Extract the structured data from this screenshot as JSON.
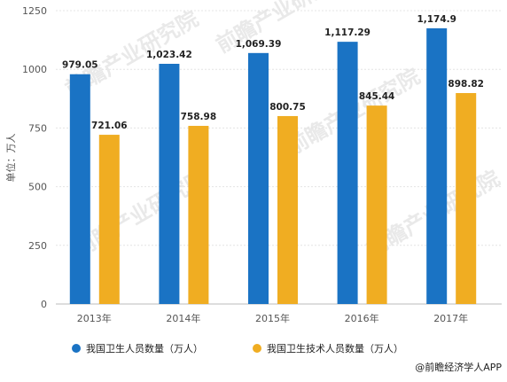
{
  "chart_data": {
    "type": "bar",
    "categories": [
      "2013年",
      "2014年",
      "2015年",
      "2016年",
      "2017年"
    ],
    "series": [
      {
        "name": "我国卫生人员数量（万人）",
        "color": "#1a73c4",
        "values": [
          979.05,
          1023.42,
          1069.39,
          1117.29,
          1174.9
        ],
        "labels": [
          "979.05",
          "1,023.42",
          "1,069.39",
          "1,117.29",
          "1,174.9"
        ]
      },
      {
        "name": "我国卫生技术人员数量（万人）",
        "color": "#f0ad22",
        "values": [
          721.06,
          758.98,
          800.75,
          845.44,
          898.82
        ],
        "labels": [
          "721.06",
          "758.98",
          "800.75",
          "845.44",
          "898.82"
        ]
      }
    ],
    "ylabel": "单位：万人",
    "ylim": [
      0,
      1250
    ],
    "yticks": [
      "0",
      "250",
      "500",
      "750",
      "1000",
      "1250"
    ],
    "grid": true,
    "legend_position": "bottom"
  },
  "credit": "@前瞻经济学人APP",
  "watermark": "前瞻产业研究院"
}
